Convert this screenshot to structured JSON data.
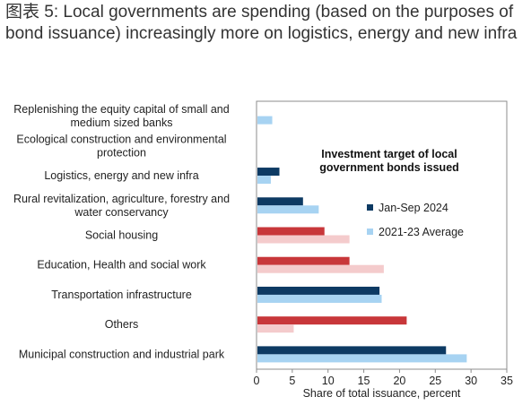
{
  "title": "图表 5: Local governments are spending (based on the purposes of bond issuance) increasingly more on logistics, energy and new infra",
  "chart_data": {
    "type": "bar",
    "orientation": "horizontal",
    "title": "Investment target of local government bonds issued",
    "xlabel": "Share of total issuance, percent",
    "ylabel": "",
    "xlim": [
      0,
      35
    ],
    "xticks": [
      0,
      5,
      10,
      15,
      20,
      25,
      30,
      35
    ],
    "grid": false,
    "legend_position": "right",
    "categories": [
      "Replenishing the equity capital of small and medium sized banks",
      "Ecological construction and environmental protection",
      "Logistics, energy and new infra",
      "Rural revitalization, agriculture, forestry and water conservancy",
      "Social housing",
      "Education, Health and social work",
      "Transportation infrastructure",
      "Others",
      "Municipal construction and industrial park"
    ],
    "category_lines": [
      [
        "Replenishing the equity capital of small and",
        "medium sized banks"
      ],
      [
        "Ecological construction and environmental",
        "protection"
      ],
      [
        "Logistics, energy and new infra"
      ],
      [
        "Rural revitalization, agriculture, forestry and",
        "water conservancy"
      ],
      [
        "Social housing"
      ],
      [
        "Education, Health and social work"
      ],
      [
        "Transportation infrastructure"
      ],
      [
        "Others"
      ],
      [
        "Municipal construction and industrial park"
      ]
    ],
    "highlight_categories": [
      "Social housing",
      "Education, Health and social work",
      "Others"
    ],
    "series": [
      {
        "name": "Jan-Sep 2024",
        "color": "#0d3a63",
        "highlight_color": "#c8373a",
        "values": [
          0,
          0,
          3.2,
          6.5,
          9.5,
          13.0,
          17.2,
          21.0,
          26.5
        ]
      },
      {
        "name": "2021-23 Average",
        "color": "#a7d3f2",
        "highlight_color": "#f4cbcc",
        "values": [
          2.2,
          0,
          2.0,
          8.7,
          13.0,
          17.8,
          17.5,
          5.2,
          29.4
        ]
      }
    ]
  }
}
